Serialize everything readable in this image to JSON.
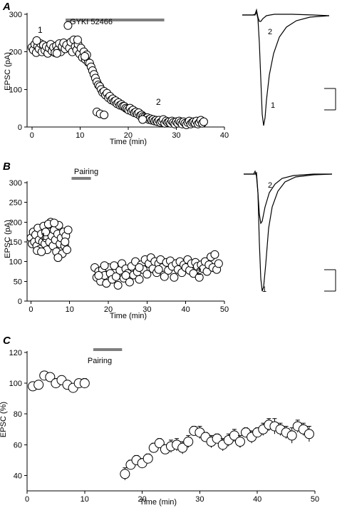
{
  "panels": {
    "A": {
      "letter": "A",
      "bar_label": "GYKI 52466",
      "point1_label": "1",
      "point2_label": "2",
      "trace1_label": "1",
      "trace2_label": "2"
    },
    "B": {
      "letter": "B",
      "bar_label": "Pairing",
      "point1_label": "1",
      "point2_label": "2",
      "trace1_label": "1",
      "trace2_label": "2"
    },
    "C": {
      "letter": "C",
      "bar_label": "Pairing"
    }
  },
  "colors": {
    "marker_fill": "#ffffff",
    "marker_stroke": "#000000",
    "bar": "#7f7f7f",
    "axis": "#000000"
  },
  "chart_data": [
    {
      "id": "A",
      "type": "scatter",
      "xlabel": "Time (min)",
      "ylabel": "EPSC (pA)",
      "xlim": [
        -1,
        40
      ],
      "ylim": [
        0,
        300
      ],
      "xticks": [
        0,
        10,
        20,
        30,
        40
      ],
      "yticks": [
        0,
        100,
        200,
        300
      ],
      "bar": {
        "label": "GYKI 52466",
        "x_start": 7,
        "x_end": 27.5
      },
      "annotations": [
        {
          "text": "1",
          "x": 1,
          "y": 242
        },
        {
          "text": "2",
          "x": 26,
          "y": 52
        }
      ],
      "points": [
        [
          0,
          212
        ],
        [
          0.3,
          205
        ],
        [
          0.6,
          220
        ],
        [
          0.9,
          198
        ],
        [
          1.2,
          215
        ],
        [
          1.5,
          208
        ],
        [
          1.8,
          222
        ],
        [
          2.1,
          200
        ],
        [
          2.4,
          218
        ],
        [
          2.7,
          204
        ],
        [
          3,
          214
        ],
        [
          3.3,
          196
        ],
        [
          3.6,
          210
        ],
        [
          3.9,
          220
        ],
        [
          4.2,
          202
        ],
        [
          4.5,
          212
        ],
        [
          4.8,
          198
        ],
        [
          5.1,
          216
        ],
        [
          5.4,
          206
        ],
        [
          5.7,
          222
        ],
        [
          6,
          200
        ],
        [
          6.3,
          214
        ],
        [
          6.6,
          224
        ],
        [
          6.9,
          208
        ],
        [
          7.2,
          218
        ],
        [
          7.5,
          270
        ],
        [
          7.8,
          210
        ],
        [
          8.1,
          226
        ],
        [
          8.4,
          200
        ],
        [
          8.7,
          232
        ],
        [
          9,
          214
        ],
        [
          9.3,
          205
        ],
        [
          9.6,
          220
        ],
        [
          9.9,
          195
        ],
        [
          10.2,
          210
        ],
        [
          10.5,
          185
        ],
        [
          10.8,
          200
        ],
        [
          11.1,
          180
        ],
        [
          11.4,
          192
        ],
        [
          11.7,
          172
        ],
        [
          12,
          170
        ],
        [
          12.3,
          160
        ],
        [
          12.6,
          150
        ],
        [
          12.9,
          140
        ],
        [
          13.2,
          130
        ],
        [
          13.5,
          120
        ],
        [
          13.8,
          112
        ],
        [
          14.1,
          108
        ],
        [
          14.4,
          100
        ],
        [
          14.7,
          92
        ],
        [
          15,
          95
        ],
        [
          15.3,
          85
        ],
        [
          15.6,
          90
        ],
        [
          15.9,
          78
        ],
        [
          16.2,
          82
        ],
        [
          16.5,
          72
        ],
        [
          16.8,
          75
        ],
        [
          17.1,
          68
        ],
        [
          17.4,
          70
        ],
        [
          17.7,
          62
        ],
        [
          18,
          65
        ],
        [
          18.3,
          58
        ],
        [
          18.6,
          60
        ],
        [
          18.9,
          55
        ],
        [
          19.2,
          55
        ],
        [
          19.5,
          50
        ],
        [
          19.8,
          48
        ],
        [
          20.1,
          45
        ],
        [
          20.4,
          50
        ],
        [
          20.7,
          42
        ],
        [
          21,
          45
        ],
        [
          21.3,
          38
        ],
        [
          21.6,
          40
        ],
        [
          21.9,
          35
        ],
        [
          22.2,
          38
        ],
        [
          22.5,
          30
        ],
        [
          22.8,
          32
        ],
        [
          23.1,
          28
        ],
        [
          23.4,
          26
        ],
        [
          23.7,
          24
        ],
        [
          24,
          25
        ],
        [
          24.3,
          20
        ],
        [
          24.6,
          22
        ],
        [
          24.9,
          18
        ],
        [
          25.2,
          20
        ],
        [
          25.5,
          16
        ],
        [
          25.8,
          18
        ],
        [
          26.1,
          14
        ],
        [
          26.4,
          18
        ],
        [
          26.7,
          12
        ],
        [
          27,
          15
        ],
        [
          27.3,
          20
        ],
        [
          27.6,
          10
        ],
        [
          27.9,
          16
        ],
        [
          28.2,
          12
        ],
        [
          28.5,
          14
        ],
        [
          28.8,
          10
        ],
        [
          29.1,
          16
        ],
        [
          29.4,
          12
        ],
        [
          29.7,
          8
        ],
        [
          30,
          14
        ],
        [
          30.3,
          10
        ],
        [
          30.6,
          16
        ],
        [
          30.9,
          12
        ],
        [
          31.2,
          8
        ],
        [
          31.5,
          14
        ],
        [
          31.8,
          10
        ],
        [
          32.1,
          6
        ],
        [
          32.4,
          12
        ],
        [
          32.7,
          16
        ],
        [
          33,
          8
        ],
        [
          33.3,
          12
        ],
        [
          33.6,
          14
        ],
        [
          33.9,
          10
        ],
        [
          34.2,
          16
        ],
        [
          34.5,
          8
        ],
        [
          34.8,
          12
        ],
        [
          35.1,
          18
        ],
        [
          35.4,
          10
        ],
        [
          35.7,
          14
        ],
        [
          13.5,
          40
        ],
        [
          14.2,
          35
        ],
        [
          15,
          32
        ],
        [
          23,
          20
        ],
        [
          11,
          188
        ],
        [
          9.5,
          232
        ],
        [
          5.2,
          196
        ],
        [
          1,
          230
        ]
      ]
    },
    {
      "id": "B",
      "type": "scatter",
      "xlabel": "Time (min)",
      "ylabel": "EPSC (pA)",
      "xlim": [
        -1,
        50
      ],
      "ylim": [
        0,
        300
      ],
      "xticks": [
        0,
        10,
        20,
        30,
        40,
        50
      ],
      "yticks": [
        0,
        50,
        100,
        150,
        200,
        250,
        300
      ],
      "bar": {
        "label": "Pairing",
        "x_start": 10.5,
        "x_end": 15.5
      },
      "annotations": [
        {
          "text": "1",
          "x": 2.5,
          "y": 105
        },
        {
          "text": "2",
          "x": 42,
          "y": 55
        }
      ],
      "points": [
        [
          0,
          160
        ],
        [
          0.3,
          145
        ],
        [
          0.6,
          175
        ],
        [
          0.9,
          150
        ],
        [
          1.2,
          168
        ],
        [
          1.5,
          140
        ],
        [
          1.8,
          185
        ],
        [
          2.1,
          155
        ],
        [
          2.4,
          132
        ],
        [
          2.7,
          170
        ],
        [
          3,
          150
        ],
        [
          3.3,
          190
        ],
        [
          3.6,
          145
        ],
        [
          3.9,
          160
        ],
        [
          4.2,
          130
        ],
        [
          4.5,
          175
        ],
        [
          4.8,
          150
        ],
        [
          5.1,
          200
        ],
        [
          5.4,
          165
        ],
        [
          5.7,
          140
        ],
        [
          6,
          180
        ],
        [
          6.3,
          155
        ],
        [
          6.6,
          125
        ],
        [
          6.9,
          170
        ],
        [
          7.2,
          192
        ],
        [
          7.5,
          145
        ],
        [
          7.8,
          160
        ],
        [
          8.1,
          120
        ],
        [
          8.4,
          175
        ],
        [
          8.7,
          140
        ],
        [
          9,
          165
        ],
        [
          9.3,
          130
        ],
        [
          9.6,
          180
        ],
        [
          1.6,
          128
        ],
        [
          4.5,
          195
        ],
        [
          7,
          110
        ],
        [
          8.8,
          150
        ],
        [
          2.7,
          125
        ],
        [
          6,
          198
        ],
        [
          3.8,
          175
        ],
        [
          16.5,
          85
        ],
        [
          17,
          60
        ],
        [
          17.5,
          75
        ],
        [
          18,
          50
        ],
        [
          18.5,
          80
        ],
        [
          19,
          65
        ],
        [
          19.5,
          45
        ],
        [
          20,
          85
        ],
        [
          20.5,
          70
        ],
        [
          21,
          55
        ],
        [
          21.5,
          90
        ],
        [
          22,
          62
        ],
        [
          22.5,
          40
        ],
        [
          23,
          78
        ],
        [
          23.5,
          95
        ],
        [
          24,
          58
        ],
        [
          24.5,
          82
        ],
        [
          25,
          70
        ],
        [
          25.5,
          48
        ],
        [
          26,
          88
        ],
        [
          26.5,
          66
        ],
        [
          27,
          100
        ],
        [
          27.5,
          74
        ],
        [
          28,
          55
        ],
        [
          28.5,
          92
        ],
        [
          29,
          80
        ],
        [
          29.5,
          105
        ],
        [
          30,
          68
        ],
        [
          30.5,
          95
        ],
        [
          31,
          110
        ],
        [
          31.5,
          82
        ],
        [
          32,
          100
        ],
        [
          32.5,
          72
        ],
        [
          33,
          95
        ],
        [
          33.5,
          105
        ],
        [
          34,
          85
        ],
        [
          34.5,
          62
        ],
        [
          35,
          98
        ],
        [
          35.5,
          78
        ],
        [
          36,
          102
        ],
        [
          36.5,
          88
        ],
        [
          37,
          60
        ],
        [
          37.5,
          95
        ],
        [
          38,
          80
        ],
        [
          38.5,
          100
        ],
        [
          39,
          72
        ],
        [
          39.5,
          92
        ],
        [
          40,
          85
        ],
        [
          40.5,
          105
        ],
        [
          41,
          78
        ],
        [
          41.5,
          95
        ],
        [
          42,
          70
        ],
        [
          42.5,
          98
        ],
        [
          43,
          88
        ],
        [
          43.5,
          60
        ],
        [
          44,
          92
        ],
        [
          44.5,
          82
        ],
        [
          45,
          100
        ],
        [
          45.5,
          75
        ],
        [
          46,
          92
        ],
        [
          46.5,
          112
        ],
        [
          47,
          85
        ],
        [
          47.5,
          118
        ],
        [
          48,
          80
        ],
        [
          48.5,
          95
        ],
        [
          17.5,
          65
        ],
        [
          19,
          90
        ],
        [
          24.5,
          65
        ],
        [
          28,
          85
        ],
        [
          33,
          80
        ]
      ]
    },
    {
      "id": "C",
      "type": "scatter",
      "xlabel": "Time (min)",
      "ylabel": "EPSC (%)",
      "xlim": [
        0,
        50
      ],
      "ylim": [
        30,
        120
      ],
      "xticks": [
        0,
        10,
        20,
        30,
        40,
        50
      ],
      "yticks": [
        40,
        60,
        80,
        100,
        120
      ],
      "bar": {
        "label": "Pairing",
        "x_start": 11.5,
        "x_end": 16.5
      },
      "points": [
        [
          1,
          98,
          2
        ],
        [
          2,
          99,
          2
        ],
        [
          3,
          105,
          2
        ],
        [
          4,
          104,
          2
        ],
        [
          5,
          100,
          3
        ],
        [
          6,
          102,
          2
        ],
        [
          7,
          99,
          2
        ],
        [
          8,
          97,
          2
        ],
        [
          9,
          100,
          2
        ],
        [
          10,
          100,
          3
        ],
        [
          17,
          41,
          4
        ],
        [
          18,
          47,
          3
        ],
        [
          19,
          50,
          3
        ],
        [
          20,
          48,
          3
        ],
        [
          21,
          51,
          3
        ],
        [
          22,
          58,
          3
        ],
        [
          23,
          61,
          3
        ],
        [
          24,
          57,
          3
        ],
        [
          25,
          59,
          4
        ],
        [
          26,
          60,
          4
        ],
        [
          27,
          58,
          4
        ],
        [
          28,
          62,
          4
        ],
        [
          29,
          69,
          3
        ],
        [
          30,
          68,
          4
        ],
        [
          31,
          65,
          3
        ],
        [
          32,
          62,
          4
        ],
        [
          33,
          64,
          3
        ],
        [
          34,
          60,
          4
        ],
        [
          35,
          63,
          4
        ],
        [
          36,
          66,
          4
        ],
        [
          37,
          62,
          4
        ],
        [
          38,
          68,
          3
        ],
        [
          39,
          65,
          4
        ],
        [
          40,
          68,
          3
        ],
        [
          41,
          70,
          4
        ],
        [
          42,
          73,
          4
        ],
        [
          43,
          72,
          5
        ],
        [
          44,
          70,
          4
        ],
        [
          45,
          68,
          4
        ],
        [
          46,
          66,
          5
        ],
        [
          47,
          72,
          4
        ],
        [
          48,
          70,
          4
        ],
        [
          49,
          67,
          5
        ]
      ]
    }
  ]
}
